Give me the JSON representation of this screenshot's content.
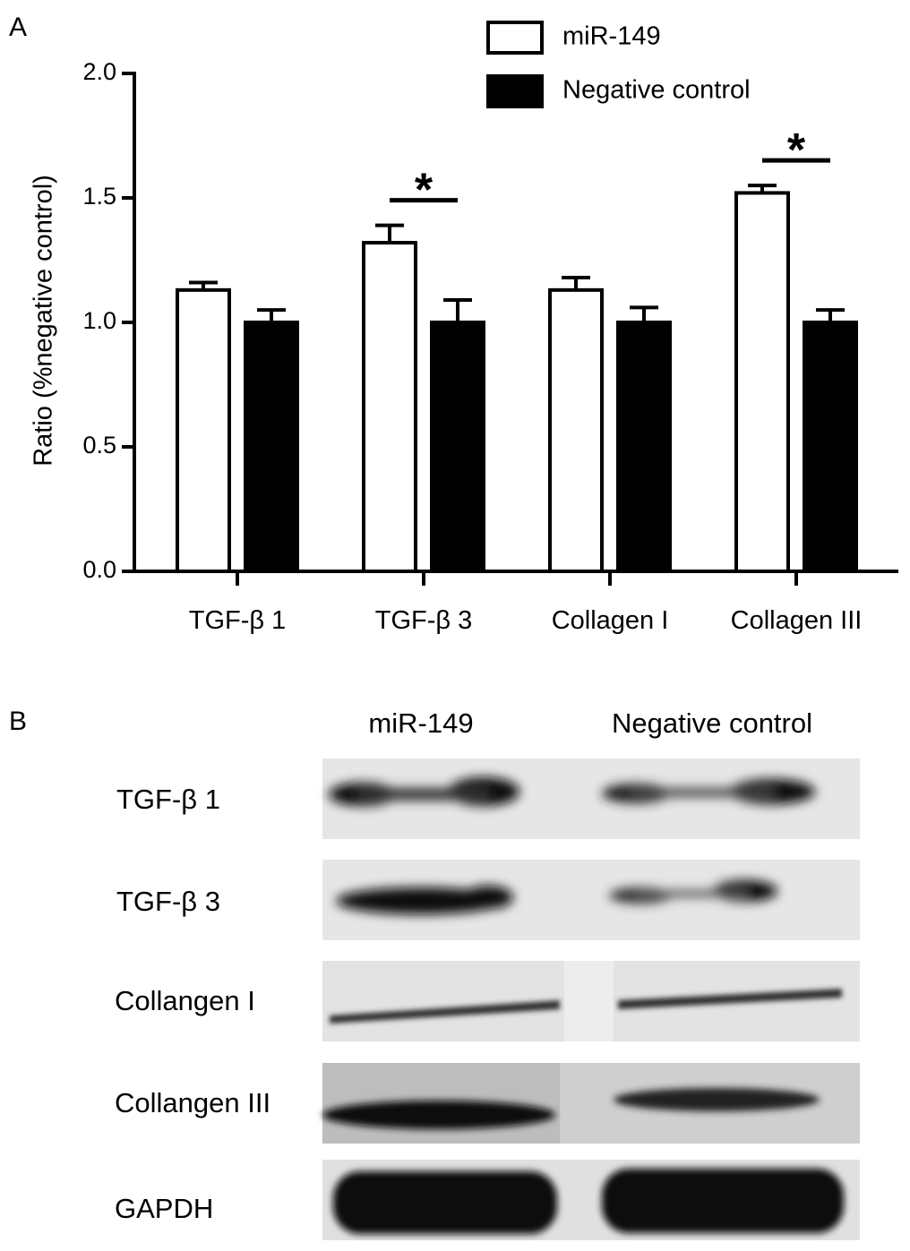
{
  "panel_a": {
    "letter": "A"
  },
  "panel_b": {
    "letter": "B",
    "lanes": [
      "miR-149",
      "Negative control"
    ],
    "blots": [
      "TGF-β 1",
      "TGF-β 3",
      "Collangen I",
      "Collangen III",
      "GAPDH"
    ]
  },
  "chart_data": {
    "type": "bar",
    "categories": [
      "TGF-β 1",
      "TGF-β 3",
      "Collagen I",
      "Collagen III"
    ],
    "ylabel": "Ratio (%negative control)",
    "xlabel": "",
    "ylim": [
      0,
      2.0
    ],
    "yticks": [
      "0.0",
      "0.5",
      "1.0",
      "1.5",
      "2.0"
    ],
    "legend_position": "top-right",
    "series": [
      {
        "name": "miR-149",
        "values": [
          1.13,
          1.32,
          1.13,
          1.52
        ],
        "errors": [
          0.03,
          0.07,
          0.05,
          0.03
        ],
        "fill": "#ffffff"
      },
      {
        "name": "Negative control",
        "values": [
          1.0,
          1.0,
          1.0,
          1.0
        ],
        "errors": [
          0.05,
          0.09,
          0.06,
          0.05
        ],
        "fill": "#000000"
      }
    ],
    "significance": [
      {
        "category": "TGF-β 3",
        "label": "*"
      },
      {
        "category": "Collagen III",
        "label": "*"
      }
    ]
  }
}
